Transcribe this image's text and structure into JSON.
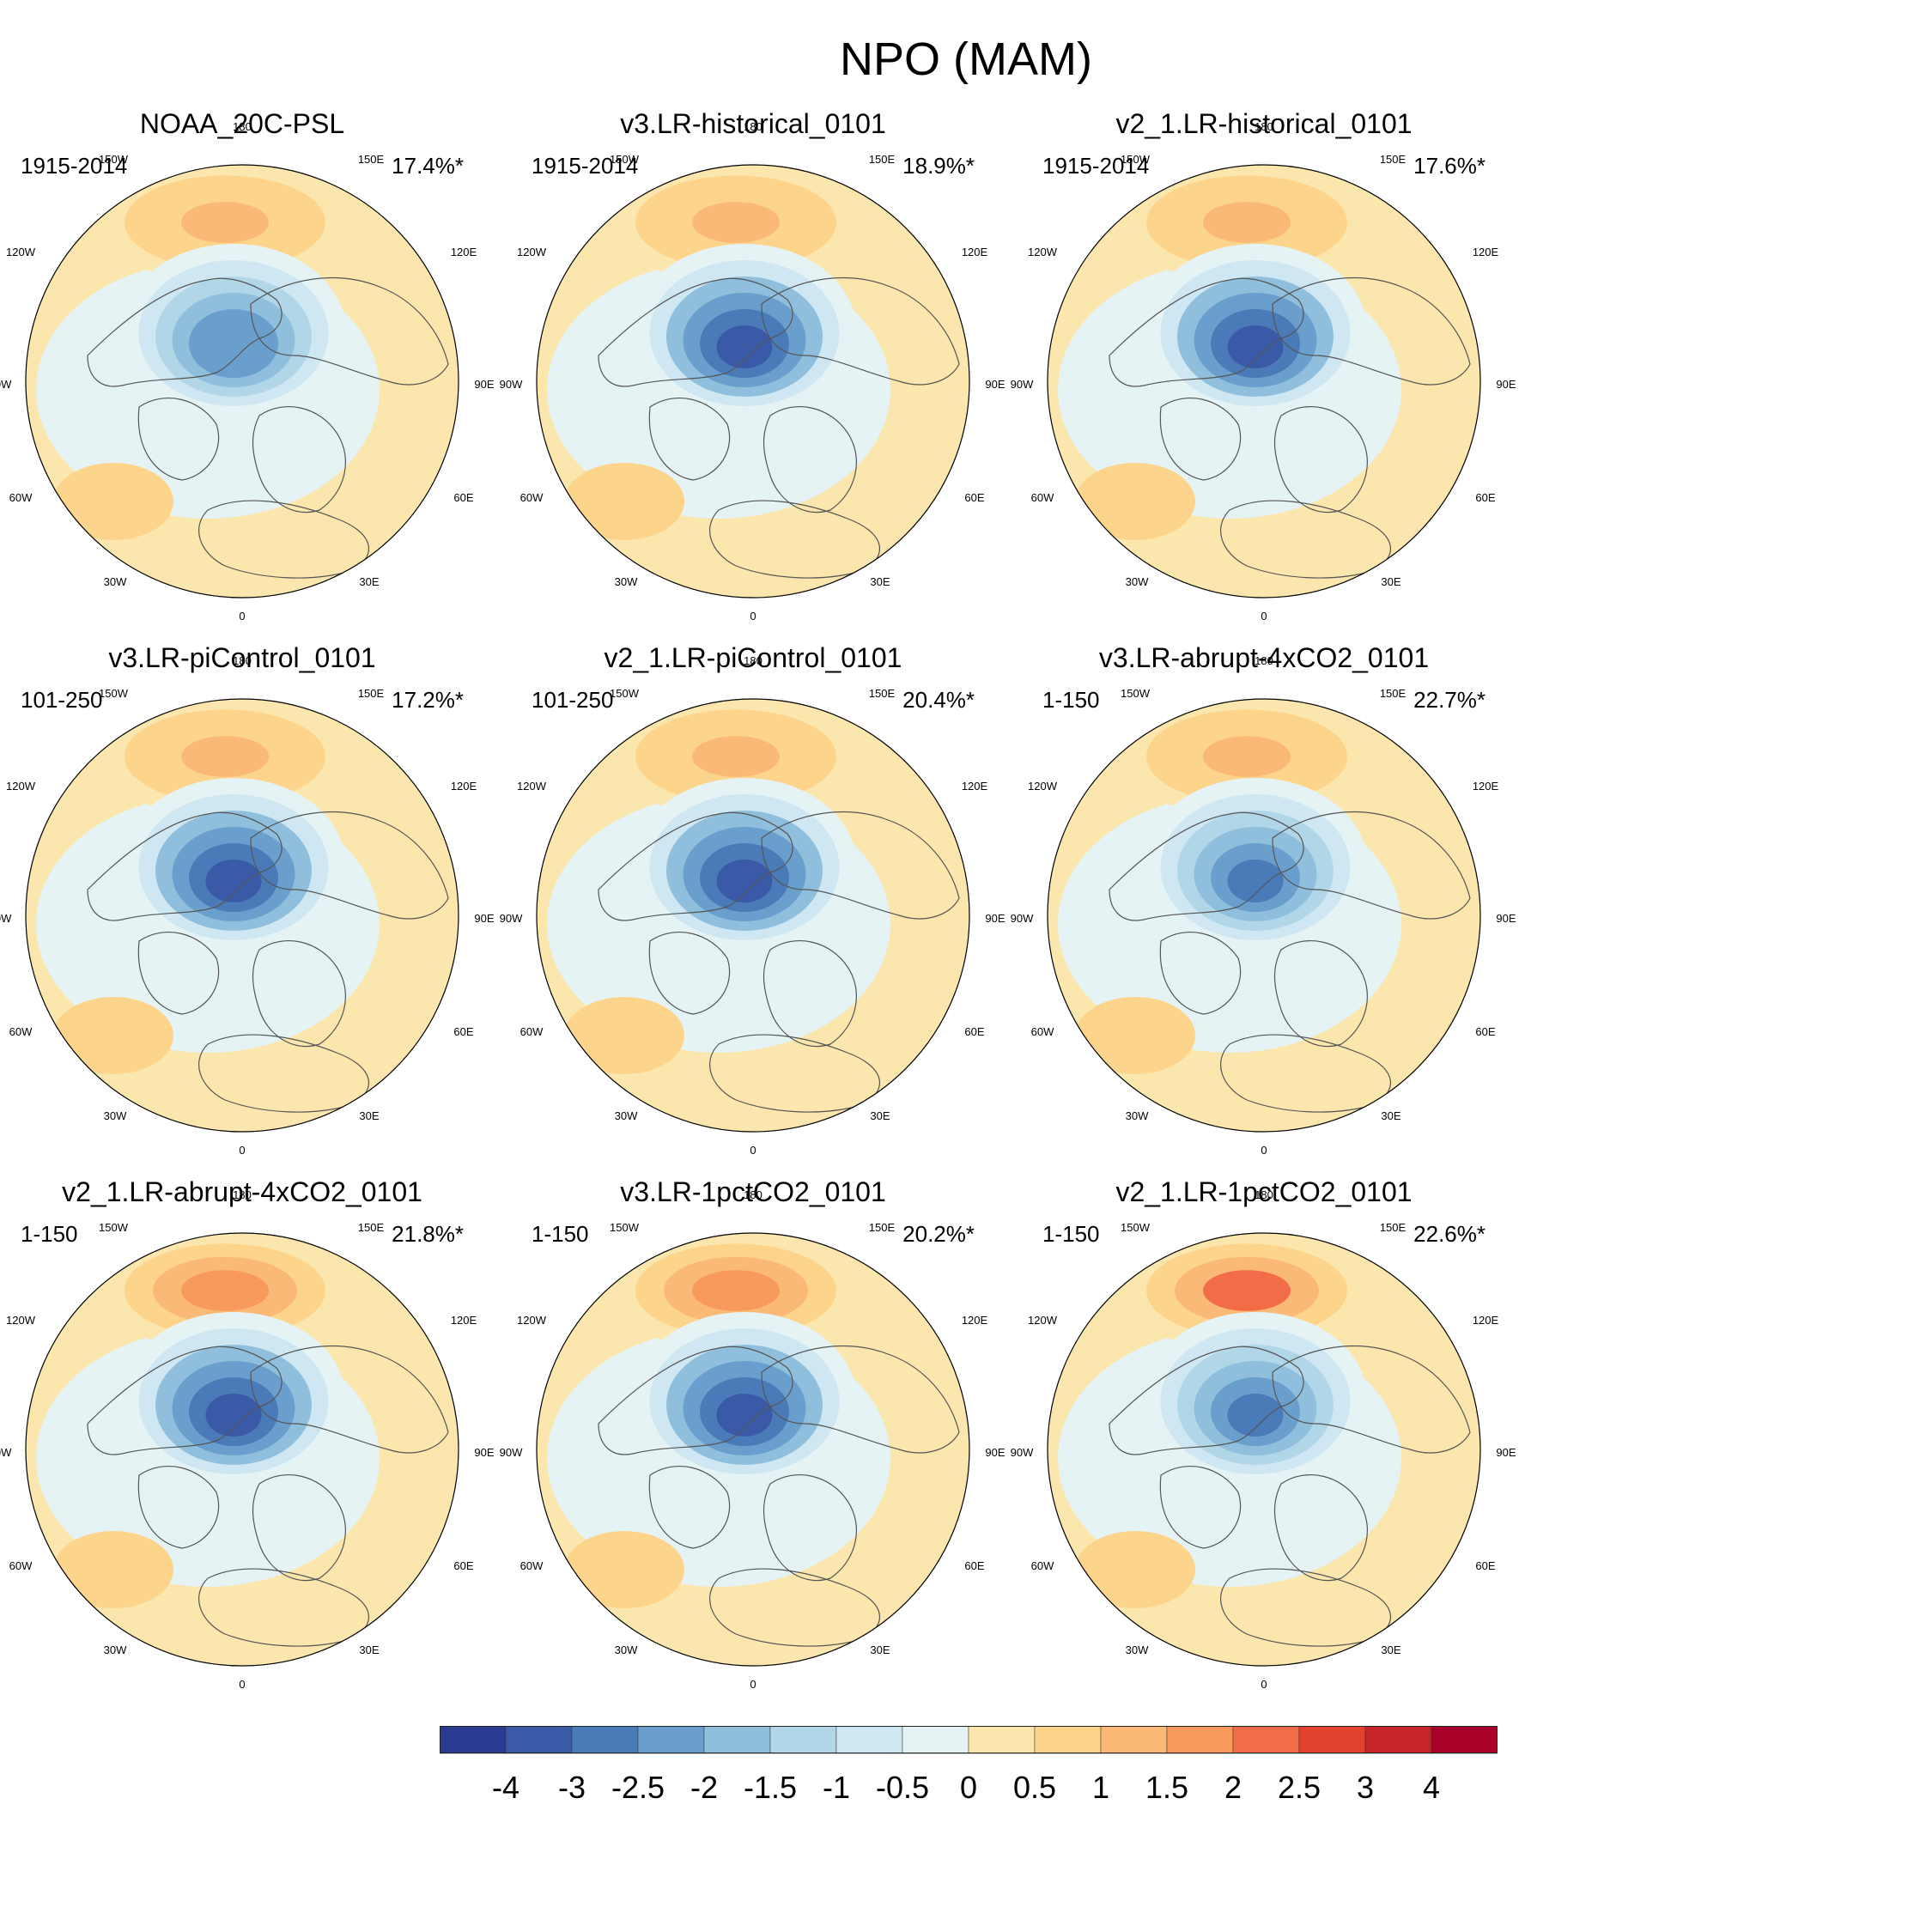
{
  "title": "NPO (MAM)",
  "chart_data": {
    "type": "heatmap",
    "projection": "north-polar-stereographic",
    "longitude_labels": [
      "180",
      "150W",
      "150E",
      "120W",
      "120E",
      "90W",
      "90E",
      "60W",
      "60E",
      "30W",
      "30E",
      "0"
    ],
    "panels": [
      {
        "title": "NOAA_20C-PSL",
        "period": "1915-2014",
        "variance_explained": "17.4%*",
        "pacific_high": 1.2,
        "aleutian_low": -2.5
      },
      {
        "title": "v3.LR-historical_0101",
        "period": "1915-2014",
        "variance_explained": "18.9%*",
        "pacific_high": 1.2,
        "aleutian_low": -3.5
      },
      {
        "title": "v2_1.LR-historical_0101",
        "period": "1915-2014",
        "variance_explained": "17.6%*",
        "pacific_high": 1.2,
        "aleutian_low": -3.5
      },
      {
        "title": "v3.LR-piControl_0101",
        "period": "101-250",
        "variance_explained": "17.2%*",
        "pacific_high": 1.0,
        "aleutian_low": -3.5
      },
      {
        "title": "v2_1.LR-piControl_0101",
        "period": "101-250",
        "variance_explained": "20.4%*",
        "pacific_high": 1.2,
        "aleutian_low": -3.5
      },
      {
        "title": "v3.LR-abrupt-4xCO2_0101",
        "period": "1-150",
        "variance_explained": "22.7%*",
        "pacific_high": 1.0,
        "aleutian_low": -3.0
      },
      {
        "title": "v2_1.LR-abrupt-4xCO2_0101",
        "period": "1-150",
        "variance_explained": "21.8%*",
        "pacific_high": 1.5,
        "aleutian_low": -3.5
      },
      {
        "title": "v3.LR-1pctCO2_0101",
        "period": "1-150",
        "variance_explained": "20.2%*",
        "pacific_high": 1.5,
        "aleutian_low": -3.5
      },
      {
        "title": "v2_1.LR-1pctCO2_0101",
        "period": "1-150",
        "variance_explained": "22.6%*",
        "pacific_high": 2.0,
        "aleutian_low": -3.0
      }
    ],
    "colorbar": {
      "levels": [
        -4,
        -3.5,
        -3,
        -2.5,
        -2,
        -1.5,
        -1,
        -0.5,
        0,
        0.5,
        1,
        1.5,
        2,
        2.5,
        3,
        3.5,
        4
      ],
      "labels": [
        "-4",
        "-3",
        "-2.5",
        "-2",
        "-1.5",
        "-1",
        "-0.5",
        "0",
        "0.5",
        "1",
        "1.5",
        "2",
        "2.5",
        "3",
        "4"
      ],
      "colors": [
        "#2b3b94",
        "#3a5aa8",
        "#4b7ab8",
        "#6a9fcd",
        "#8fbfdc",
        "#b0d6e8",
        "#cfe7f2",
        "#e6f3f4",
        "#fbe6ad",
        "#fdd48b",
        "#fbb978",
        "#f89a5c",
        "#f26d47",
        "#e2432f",
        "#c7232a",
        "#a8022b"
      ]
    }
  }
}
